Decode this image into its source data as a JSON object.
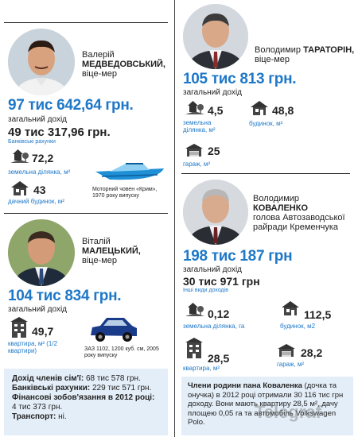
{
  "medvedovskyi": {
    "first_name": "Валерій",
    "last_name": "МЕДВЕДОВСЬКИЙ,",
    "position": "віце-мер",
    "income": "97 тис 642,64 грн.",
    "income_label": "загальний дохід",
    "bank": "49 тис 317,96 грн.",
    "bank_label": "Банківські рахунки",
    "land_value": "72,2",
    "land_label": "земельна ділянка, м²",
    "house_value": "43",
    "house_label": "дачний будинок, м²",
    "boat_caption": "Моторний човен «Крим», 1970 року випуску"
  },
  "taratorin": {
    "first_name": "Володимир",
    "last_name": "ТАРАТОРІН,",
    "position": "віце-мер",
    "income": "105 тис 813 грн.",
    "income_label": "загальний дохід",
    "land_value": "4,5",
    "land_label": "земельна ділянка, м²",
    "house_value": "48,8",
    "house_label": "будинок, м²",
    "garage_value": "25",
    "garage_label": "гараж, м²"
  },
  "maletskyi": {
    "first_name": "Віталій",
    "last_name": "МАЛЕЦЬКИЙ,",
    "position": "віце-мер",
    "income": "104 тис 834 грн.",
    "income_label": "загальний дохід",
    "flat_value": "49,7",
    "flat_label": "квартира, м² (1/2 квартири)",
    "car_caption": "ЗАЗ 1102, 1200 куб. см, 2005 року випуску",
    "note_family_label": "Дохід членів сім'ї:",
    "note_family_value": "68 тис 578 грн.",
    "note_bank_label": "Банківські рахунки:",
    "note_bank_value": "229 тис 571 грн.",
    "note_fin_label": "Фінансові зобов'язання в 2012 році:",
    "note_fin_value": "4 тис 373 грн.",
    "note_transport_label": "Транспорт:",
    "note_transport_value": "ні."
  },
  "kovalenko": {
    "first_name": "Володимир",
    "last_name": "КОВАЛЕНКО",
    "position": "голова Автозаводської райради Кременчука",
    "income": "198 тис 187 грн",
    "income_label": "загальний дохід",
    "other": "30 тис 971 грн",
    "other_label": "Інші види доходів",
    "land_value": "0,12",
    "land_label": "земельна ділянка, га",
    "house_value": "112,5",
    "house_label": "будинок, м2",
    "flat_value": "28,5",
    "flat_label": "квартира, м²",
    "garage_value": "28,2",
    "garage_label": "гараж, м²",
    "note_bold": "Члени родини пана Коваленка",
    "note_rest": "(дочка та онучка) в 2012 році отримали 30 116 тис грн доходу. Вони мають квартиру 28,5 м², дачу площею 0,05 га та автомобіль Volkswagen Polo."
  },
  "watermark": "Telegraf",
  "colors": {
    "accent": "#1e78c8",
    "note_bg": "#e4eef8"
  }
}
